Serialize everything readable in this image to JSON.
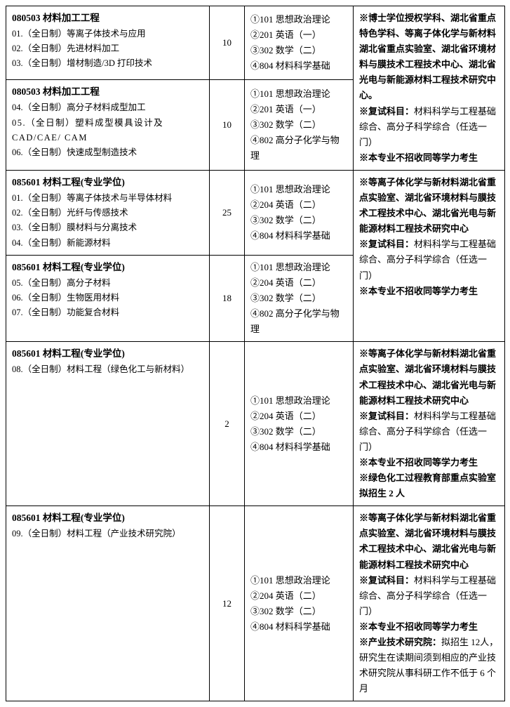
{
  "rows": [
    {
      "code_title": "080503 材料加工工程",
      "subs": [
        "01.（全日制）等离子体技术与应用",
        "02.（全日制）先进材料加工",
        "03.（全日制）增材制造/3D 打印技术"
      ],
      "count": "10",
      "exams": [
        "①101 思想政治理论",
        "②201 英语（一）",
        "③302 数学（二）",
        "④804 材料科学基础"
      ],
      "note_rowspan": 2,
      "notes": [
        {
          "bold": true,
          "text": "※博士学位授权学科、湖北省重点特色学科、等离子体化学与新材料湖北省重点实验室、湖北省环境材料与膜技术工程技术中心、湖北省光电与新能源材料工程技术研究中心。"
        },
        {
          "mixed": true,
          "bold_prefix": "※复试科目：",
          "rest": "材料科学与工程基础综合、高分子科学综合（任选一门）"
        },
        {
          "bold": true,
          "text": "※本专业不招收同等学力考生"
        }
      ]
    },
    {
      "code_title": "080503 材料加工工程",
      "subs": [
        "04.（全日制）高分子材料成型加工",
        "05.（全日制）塑料成型模具设计及CAD/CAE/ CAM",
        "06.（全日制）快速成型制造技术"
      ],
      "subs_spaced_idx": 1,
      "count": "10",
      "exams": [
        "①101 思想政治理论",
        "②201 英语（一）",
        "③302 数学（二）",
        "④802 高分子化学与物理"
      ]
    },
    {
      "code_title": "085601 材料工程(专业学位)",
      "subs": [
        "01.（全日制）等离子体技术与半导体材料",
        "02.（全日制）光纤与传感技术",
        "03.（全日制）膜材料与分离技术",
        "04.（全日制）新能源材料"
      ],
      "count": "25",
      "exams": [
        "①101  思想政治理论",
        "②204  英语（二）",
        "③302  数学（二）",
        "④804  材料科学基础"
      ],
      "note_rowspan": 2,
      "notes": [
        {
          "bold": true,
          "text": "※等离子体化学与新材料湖北省重点实验室、湖北省环境材料与膜技术工程技术中心、湖北省光电与新能源材料工程技术研究中心"
        },
        {
          "mixed": true,
          "bold_prefix": "※复试科目：",
          "rest": "材料科学与工程基础综合、高分子科学综合（任选一门）"
        },
        {
          "bold": true,
          "text": "※本专业不招收同等学力考生"
        }
      ]
    },
    {
      "code_title": "085601 材料工程(专业学位)",
      "subs": [
        "05.（全日制）高分子材料",
        "06.（全日制）生物医用材料",
        "07.（全日制）功能复合材料"
      ],
      "count": "18",
      "exams": [
        "①101  思想政治理论",
        "②204  英语（二）",
        "③302  数学（二）",
        "④802  高分子化学与物理"
      ]
    },
    {
      "code_title": "085601 材料工程(专业学位)",
      "subs": [
        "08.（全日制）材料工程（绿色化工与新材料）"
      ],
      "count": "2",
      "exams": [
        "①101  思想政治理论",
        "②204  英语（二）",
        "③302  数学（二）",
        "④804  材料科学基础"
      ],
      "note_rowspan": 1,
      "notes": [
        {
          "bold": true,
          "text": "※等离子体化学与新材料湖北省重点实验室、湖北省环境材料与膜技术工程技术中心、湖北省光电与新能源材料工程技术研究中心"
        },
        {
          "mixed": true,
          "bold_prefix": "※复试科目：",
          "rest": "材料科学与工程基础综合、高分子科学综合（任选一门）"
        },
        {
          "bold": true,
          "text": "※本专业不招收同等学力考生"
        },
        {
          "bold": true,
          "text": "※绿色化工过程教育部重点实验室拟招生 2 人"
        }
      ]
    },
    {
      "code_title": "085601 材料工程(专业学位)",
      "subs": [
        "09.（全日制）材料工程（产业技术研究院）"
      ],
      "count": "12",
      "exams": [
        "①101  思想政治理论",
        "②204  英语（二）",
        "③302  数学（二）",
        "④804  材料科学基础"
      ],
      "note_rowspan": 1,
      "notes": [
        {
          "bold": true,
          "text": "※等离子体化学与新材料湖北省重点实验室、湖北省环境材料与膜技术工程技术中心、湖北省光电与新能源材料工程技术研究中心"
        },
        {
          "mixed": true,
          "bold_prefix": "※复试科目：",
          "rest": "材料科学与工程基础综合、高分子科学综合（任选一门）"
        },
        {
          "bold": true,
          "text": "※本专业不招收同等学力考生"
        },
        {
          "mixed": true,
          "bold_prefix": "※产业技术研究院：",
          "rest": "拟招生 12人，研究生在读期间须到相应的产业技术研究院从事科研工作不低于 6 个月"
        }
      ]
    }
  ],
  "colors": {
    "border": "#000000",
    "background": "#ffffff",
    "text": "#000000"
  }
}
